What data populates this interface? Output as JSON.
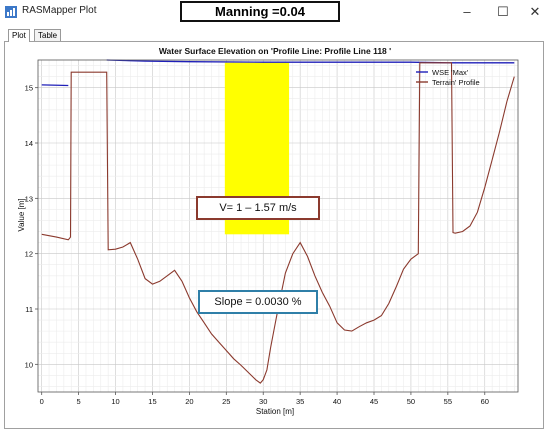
{
  "window": {
    "title": "RASMapper Plot",
    "icon": "rasmapper-app-icon",
    "controls": [
      "–",
      "☐",
      "✕"
    ]
  },
  "overlay_title": "Manning =0.04",
  "tabs": [
    {
      "label": "Plot",
      "active": true
    },
    {
      "label": "Table",
      "active": false
    }
  ],
  "annotations": {
    "velocity": "V= 1 – 1.57 m/s",
    "slope": "Slope = 0.0030 %"
  },
  "colors": {
    "wse": "#1f1fb8",
    "terrain": "#8b3a2e",
    "highlight": "#ffff00",
    "grid": "#d9d9d9"
  },
  "chart_data": {
    "type": "line",
    "title": "Water Surface Elevation on 'Profile Line: Profile Line 118 '",
    "xlabel": "Station [m]",
    "ylabel": "Value [m]",
    "xlim": [
      -0.5,
      64.5
    ],
    "ylim": [
      9.5,
      15.5
    ],
    "xticks": [
      0,
      5,
      10,
      15,
      20,
      25,
      30,
      35,
      40,
      45,
      50,
      55,
      60
    ],
    "yticks": [
      10,
      11,
      12,
      13,
      14,
      15
    ],
    "grid": true,
    "legend_position": "top-right",
    "highlight_band": {
      "x_start": 24.8,
      "x_end": 33.5,
      "y_start": 12.35,
      "y_end": 15.45
    },
    "series": [
      {
        "name": "WSE 'Max'",
        "color": "#1f1fb8",
        "segments": [
          {
            "x": [
              0,
              3.6
            ],
            "y": [
              15.05,
              15.04
            ]
          },
          {
            "x": [
              8.8,
              14,
              20,
              30,
              40,
              50,
              55,
              60,
              64
            ],
            "y": [
              15.5,
              15.48,
              15.47,
              15.46,
              15.46,
              15.46,
              15.45,
              15.45,
              15.45
            ]
          }
        ]
      },
      {
        "name": "Terrain' Profile",
        "color": "#8b3a2e",
        "x": [
          0,
          2,
          3.6,
          3.9,
          4,
          8.8,
          9,
          10,
          11,
          12,
          13,
          14,
          15,
          16,
          17,
          18,
          19,
          20,
          21,
          22,
          23,
          24,
          25,
          26,
          27,
          28,
          29,
          29.6,
          30,
          30.5,
          31,
          32,
          33,
          34,
          35,
          36,
          37,
          38,
          39,
          40,
          41,
          42,
          43,
          44,
          45,
          46,
          47,
          48,
          49,
          50,
          51,
          51.2,
          51.5,
          55.5,
          55.7,
          56,
          57,
          58,
          59,
          60,
          61,
          62,
          63,
          64
        ],
        "y": [
          12.35,
          12.3,
          12.25,
          12.3,
          15.28,
          15.28,
          12.07,
          12.08,
          12.12,
          12.2,
          11.9,
          11.55,
          11.45,
          11.5,
          11.6,
          11.7,
          11.5,
          11.2,
          10.95,
          10.75,
          10.55,
          10.4,
          10.25,
          10.1,
          9.98,
          9.85,
          9.72,
          9.66,
          9.72,
          9.9,
          10.3,
          11.0,
          11.65,
          12.0,
          12.2,
          11.95,
          11.6,
          11.3,
          11.05,
          10.75,
          10.62,
          10.6,
          10.68,
          10.75,
          10.8,
          10.88,
          11.1,
          11.4,
          11.72,
          11.9,
          12.0,
          15.45,
          15.45,
          15.45,
          12.38,
          12.37,
          12.4,
          12.5,
          12.75,
          13.2,
          13.7,
          14.2,
          14.75,
          15.2
        ]
      }
    ]
  }
}
